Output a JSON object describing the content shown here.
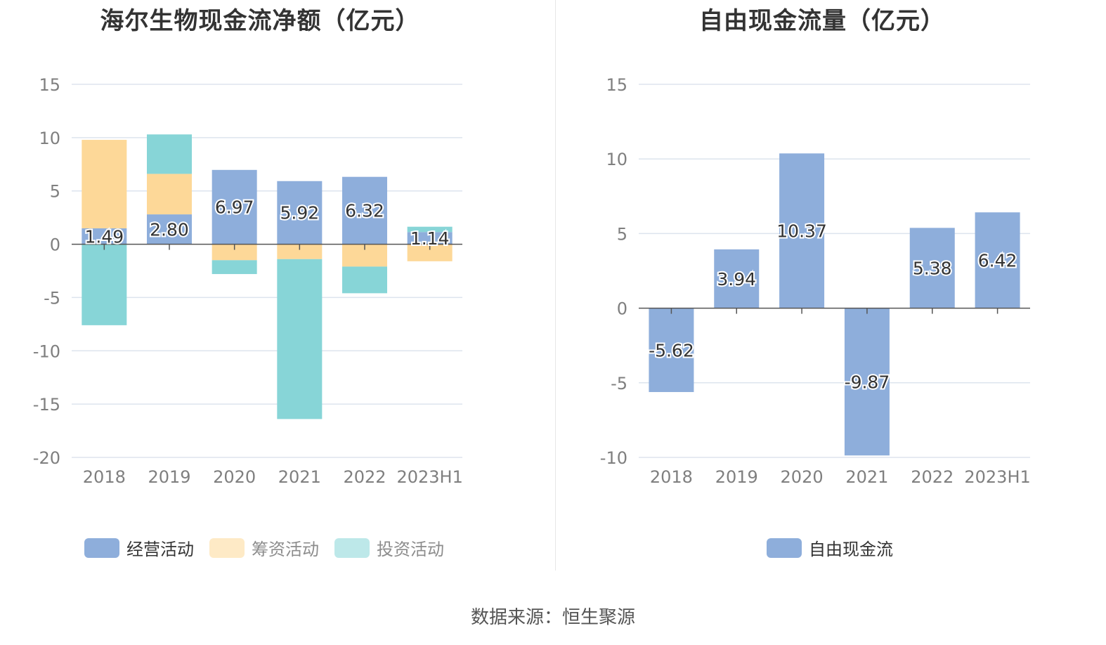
{
  "source_text": "数据来源：恒生聚源",
  "colors": {
    "operating": "#8eaedb",
    "financing": "#fdd898",
    "investing": "#87d5d7",
    "free_cash_flow": "#8eaedb",
    "grid": "#dde4ee",
    "axis": "#555555",
    "tick_text": "#7f7f7f"
  },
  "chart_data": [
    {
      "type": "bar",
      "stacked": true,
      "title": "海尔生物现金流净额（亿元）",
      "categories": [
        "2018",
        "2019",
        "2020",
        "2021",
        "2022",
        "2023H1"
      ],
      "ylim": [
        -20,
        15
      ],
      "yticks": [
        15,
        10,
        5,
        0,
        -5,
        -10,
        -15,
        -20
      ],
      "ytick_labels": [
        "15",
        "10",
        "5",
        "0",
        "-5",
        "-10",
        "-15",
        "-20"
      ],
      "grid": true,
      "legend_position": "bottom",
      "series": [
        {
          "name": "经营活动",
          "key": "operating",
          "values": [
            1.49,
            2.8,
            6.97,
            5.92,
            6.32,
            1.14
          ],
          "labels": [
            "1.49",
            "2.80",
            "6.97",
            "5.92",
            "6.32",
            "1.14"
          ]
        },
        {
          "name": "筹资活动",
          "key": "financing",
          "values": [
            8.3,
            3.8,
            -1.5,
            -1.4,
            -2.1,
            -1.6
          ]
        },
        {
          "name": "投资活动",
          "key": "investing",
          "values": [
            -7.6,
            3.7,
            -1.3,
            -15.0,
            -2.5,
            0.5
          ]
        }
      ]
    },
    {
      "type": "bar",
      "title": "自由现金流量（亿元）",
      "categories": [
        "2018",
        "2019",
        "2020",
        "2021",
        "2022",
        "2023H1"
      ],
      "ylim": [
        -10,
        15
      ],
      "yticks": [
        15,
        10,
        5,
        0,
        -5,
        -10
      ],
      "ytick_labels": [
        "15",
        "10",
        "5",
        "0",
        "-5",
        "-10"
      ],
      "grid": true,
      "legend_position": "bottom",
      "series": [
        {
          "name": "自由现金流",
          "key": "free_cash_flow",
          "values": [
            -5.62,
            3.94,
            10.37,
            -9.87,
            5.38,
            6.42
          ],
          "labels": [
            "-5.62",
            "3.94",
            "10.37",
            "-9.87",
            "5.38",
            "6.42"
          ]
        }
      ]
    }
  ]
}
